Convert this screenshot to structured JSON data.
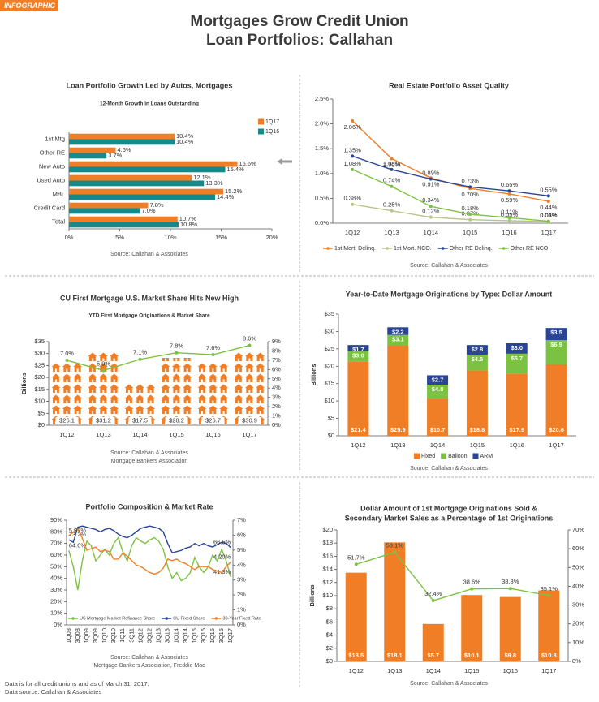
{
  "header": {
    "tag": "INFOGRAPHIC",
    "title": [
      "Mortgages Grow Credit Union",
      "Loan Portfolios: Callahan"
    ]
  },
  "chart_data": [
    {
      "type": "bar",
      "horizontal": true,
      "title": "Loan Portfolio Growth Led by Autos, Mortgages",
      "subtitle": "12-Month Growth in Loans Outstanding",
      "categories": [
        "1st Mtg",
        "Other RE",
        "New Auto",
        "Used Auto",
        "MBL",
        "Credit Card",
        "Total"
      ],
      "series": [
        {
          "name": "1Q17",
          "color": "#f07e26",
          "values": [
            10.4,
            4.6,
            16.6,
            12.1,
            15.2,
            7.8,
            10.7
          ],
          "value_labels": [
            "10.4%",
            "4.6%",
            "16.6%",
            "12.1%",
            "15.2%",
            "7.8%",
            "10.7%"
          ]
        },
        {
          "name": "1Q16",
          "color": "#168a8a",
          "values": [
            10.4,
            3.7,
            15.4,
            13.3,
            14.4,
            7.0,
            10.8
          ],
          "value_labels": [
            "10.4%",
            "3.7%",
            "15.4%",
            "13.3%",
            "14.4%",
            "7.0%",
            "10.8%"
          ]
        }
      ],
      "xlim": [
        0,
        20
      ],
      "xticks": [
        {
          "value": 0,
          "label": "0%"
        },
        {
          "value": 5,
          "label": "5%"
        },
        {
          "value": 10,
          "label": "10%"
        },
        {
          "value": 15,
          "label": "15%"
        },
        {
          "value": 20,
          "label": "20%"
        }
      ],
      "source": [
        "Source: Callahan & Associates"
      ]
    },
    {
      "type": "line",
      "title": "Real Estate Portfolio Asset Quality",
      "categories": [
        "1Q12",
        "1Q13",
        "1Q14",
        "1Q15",
        "1Q16",
        "1Q17"
      ],
      "series": [
        {
          "name": "1st Mort. Delinq.",
          "color": "#f07e26",
          "values": [
            2.06,
            1.3,
            0.91,
            0.7,
            0.59,
            0.44
          ],
          "value_labels": [
            "2.06%",
            "1.30%",
            "0.91%",
            "0.70%",
            "0.59%",
            "0.44%"
          ]
        },
        {
          "name": "1st Mort. NCO.",
          "color": "#b7c585",
          "values": [
            0.38,
            0.25,
            0.12,
            0.07,
            0.05,
            0.03
          ],
          "value_labels": [
            "0.38%",
            "0.25%",
            "0.12%",
            "0.07%",
            "0.05%",
            "0.03%"
          ]
        },
        {
          "name": "Other RE Delinq.",
          "color": "#2b4596",
          "values": [
            1.35,
            1.08,
            0.89,
            0.73,
            0.65,
            0.55
          ],
          "value_labels": [
            "1.35%",
            "1.08%",
            "0.89%",
            "0.73%",
            "0.65%",
            "0.55%"
          ]
        },
        {
          "name": "Other RE NCO",
          "color": "#7cc242",
          "values": [
            1.08,
            0.74,
            0.34,
            0.18,
            0.11,
            0.04
          ],
          "value_labels": [
            "1.08%",
            "0.74%",
            "0.34%",
            "0.18%",
            "0.11%",
            "0.04%"
          ]
        }
      ],
      "ylim": [
        0,
        2.5
      ],
      "yticks": [
        {
          "value": 0,
          "label": "0.0%"
        },
        {
          "value": 0.5,
          "label": "0.5%"
        },
        {
          "value": 1,
          "label": "1.0%"
        },
        {
          "value": 1.5,
          "label": "1.5%"
        },
        {
          "value": 2,
          "label": "2.0%"
        },
        {
          "value": 2.5,
          "label": "2.5%"
        }
      ],
      "source": [
        "Source: Callahan & Associates"
      ]
    },
    {
      "type": "pictograph",
      "title": "CU First Mortgage U.S. Market Share Hits New High",
      "subtitle": "YTD First Mortgage Originations & Market Share",
      "ylabel": "Billions",
      "categories": [
        "1Q12",
        "1Q13",
        "1Q14",
        "1Q15",
        "1Q16",
        "1Q17"
      ],
      "series": [
        {
          "color": "#f07e26",
          "values": [
            26.1,
            31.2,
            17.5,
            28.2,
            26.7,
            30.9
          ],
          "value_labels": [
            "$26.1",
            "$31.2",
            "$17.5",
            "$28.2",
            "$26.7",
            "$30.9"
          ]
        },
        {
          "color": "#7cc242",
          "axis": "y2",
          "values": [
            7.0,
            5.9,
            7.1,
            7.8,
            7.6,
            8.6
          ],
          "value_labels": [
            "7.0%",
            "5.9%",
            "7.1%",
            "7.8%",
            "7.6%",
            "8.6%"
          ]
        }
      ],
      "ylim": [
        0,
        35
      ],
      "yticks": [
        {
          "value": 0,
          "label": "$0"
        },
        {
          "value": 5,
          "label": "$5"
        },
        {
          "value": 10,
          "label": "$10"
        },
        {
          "value": 15,
          "label": "$15"
        },
        {
          "value": 20,
          "label": "$20"
        },
        {
          "value": 25,
          "label": "$25"
        },
        {
          "value": 30,
          "label": "$30"
        },
        {
          "value": 35,
          "label": "$35"
        }
      ],
      "y2lim": [
        0,
        9
      ],
      "y2ticks": [
        {
          "value": 0,
          "label": "0%"
        },
        {
          "value": 1,
          "label": "1%"
        },
        {
          "value": 2,
          "label": "2%"
        },
        {
          "value": 3,
          "label": "3%"
        },
        {
          "value": 4,
          "label": "4%"
        },
        {
          "value": 5,
          "label": "5%"
        },
        {
          "value": 6,
          "label": "6%"
        },
        {
          "value": 7,
          "label": "7%"
        },
        {
          "value": 8,
          "label": "8%"
        },
        {
          "value": 9,
          "label": "9%"
        }
      ],
      "source": [
        "Source: Callahan & Associates",
        "Mortgage Bankers Association"
      ]
    },
    {
      "type": "stacked",
      "title": "Year-to-Date Mortgage Originations by Type: Dollar Amount",
      "ylabel": "Billions",
      "categories": [
        "1Q12",
        "1Q13",
        "1Q14",
        "1Q15",
        "1Q16",
        "1Q17"
      ],
      "series": [
        {
          "name": "Fixed",
          "color": "#f07e26",
          "values": [
            21.4,
            25.9,
            10.7,
            18.8,
            17.9,
            20.6
          ],
          "value_labels": [
            "$21.4",
            "$25.9",
            "$10.7",
            "$18.8",
            "$17.9",
            "$20.6"
          ]
        },
        {
          "name": "Balloon",
          "color": "#7cc242",
          "values": [
            3.0,
            3.1,
            4.0,
            4.5,
            5.7,
            6.9
          ],
          "value_labels": [
            "$3.0",
            "$3.1",
            "$4.0",
            "$4.5",
            "$5.7",
            "$6.9"
          ]
        },
        {
          "name": "ARM",
          "color": "#2b4596",
          "values": [
            1.7,
            2.2,
            2.7,
            2.8,
            3.0,
            3.5
          ],
          "value_labels": [
            "$1.7",
            "$2.2",
            "$2.7",
            "$2.8",
            "$3.0",
            "$3.5"
          ]
        }
      ],
      "ylim": [
        0,
        35
      ],
      "yticks": [
        {
          "value": 0,
          "label": "$0"
        },
        {
          "value": 5,
          "label": "$5"
        },
        {
          "value": 10,
          "label": "$10"
        },
        {
          "value": 15,
          "label": "$15"
        },
        {
          "value": 20,
          "label": "$20"
        },
        {
          "value": 25,
          "label": "$25"
        },
        {
          "value": 30,
          "label": "$30"
        },
        {
          "value": 35,
          "label": "$35"
        }
      ],
      "source": [
        "Source: Callahan & Associates"
      ]
    },
    {
      "type": "line",
      "title": "Portfolio Composition & Market Rate",
      "categories": [
        "1Q08",
        null,
        "3Q08",
        null,
        "1Q09",
        null,
        "3Q09",
        null,
        "1Q10",
        null,
        "3Q10",
        null,
        "1Q11",
        null,
        "3Q11",
        null,
        "1Q12",
        null,
        "3Q12",
        null,
        "1Q13",
        null,
        "3Q13",
        null,
        "1Q14",
        null,
        "3Q14",
        null,
        "1Q15",
        null,
        "3Q15",
        null,
        "1Q16",
        null,
        "3Q16",
        null,
        "1Q17"
      ],
      "series": [
        {
          "name": "US Mortgage Market Refinance Share",
          "color": "#7cc242",
          "values": [
            64.0,
            50,
            30,
            55,
            72,
            68,
            55,
            60,
            65,
            60,
            70,
            75,
            63,
            55,
            68,
            75,
            72,
            70,
            73,
            75,
            72,
            65,
            50,
            40,
            45,
            38,
            40,
            45,
            58,
            50,
            45,
            50,
            60,
            55,
            65,
            55,
            41.3
          ],
          "value_labels": [
            "64.0%",
            null,
            null,
            null,
            null,
            null,
            null,
            null,
            null,
            null,
            null,
            null,
            null,
            null,
            null,
            null,
            null,
            null,
            null,
            null,
            null,
            null,
            null,
            null,
            null,
            null,
            null,
            null,
            null,
            null,
            null,
            null,
            null,
            null,
            null,
            null,
            "41.3%"
          ]
        },
        {
          "name": "CU Fixed Share",
          "color": "#2b4596",
          "values": [
            73.2,
            71,
            84,
            85,
            84,
            83,
            82,
            80,
            82,
            83,
            81,
            78,
            76,
            75,
            77,
            80,
            83,
            84,
            85,
            84,
            83,
            80,
            70,
            62,
            63,
            64,
            66,
            67,
            70,
            68,
            70,
            68,
            67,
            69,
            71,
            70,
            66.5
          ],
          "value_labels": [
            "73.2%",
            null,
            null,
            null,
            null,
            null,
            null,
            null,
            null,
            null,
            null,
            null,
            null,
            null,
            null,
            null,
            null,
            null,
            null,
            null,
            null,
            null,
            null,
            null,
            null,
            null,
            null,
            null,
            null,
            null,
            null,
            null,
            null,
            null,
            null,
            null,
            "66.5%"
          ]
        },
        {
          "name": "30-Year Fixed Rate",
          "color": "#f07e26",
          "axis": "y2",
          "values": [
            5.97,
            6.2,
            6.4,
            5.8,
            5.0,
            5.1,
            5.2,
            4.9,
            5.0,
            4.9,
            4.4,
            4.4,
            4.8,
            4.6,
            4.3,
            4.0,
            3.9,
            3.7,
            3.5,
            3.4,
            3.5,
            3.8,
            4.4,
            4.3,
            4.4,
            4.2,
            4.1,
            3.9,
            3.7,
            3.9,
            3.9,
            3.9,
            3.7,
            3.6,
            3.5,
            3.9,
            4.2
          ],
          "value_labels": [
            "5.97%",
            null,
            null,
            null,
            null,
            null,
            null,
            null,
            null,
            null,
            null,
            null,
            null,
            null,
            null,
            null,
            null,
            null,
            null,
            null,
            null,
            null,
            null,
            null,
            null,
            null,
            null,
            null,
            null,
            null,
            null,
            null,
            null,
            null,
            null,
            null,
            "4.20%"
          ]
        }
      ],
      "ylim": [
        0,
        90
      ],
      "yticks": [
        {
          "value": 0,
          "label": "0%"
        },
        {
          "value": 10,
          "label": "10%"
        },
        {
          "value": 20,
          "label": "20%"
        },
        {
          "value": 30,
          "label": "30%"
        },
        {
          "value": 40,
          "label": "40%"
        },
        {
          "value": 50,
          "label": "50%"
        },
        {
          "value": 60,
          "label": "60%"
        },
        {
          "value": 70,
          "label": "70%"
        },
        {
          "value": 80,
          "label": "80%"
        },
        {
          "value": 90,
          "label": "90%"
        }
      ],
      "y2lim": [
        0,
        7
      ],
      "y2ticks": [
        {
          "value": 0,
          "label": "0%"
        },
        {
          "value": 1,
          "label": "1%"
        },
        {
          "value": 2,
          "label": "2%"
        },
        {
          "value": 3,
          "label": "3%"
        },
        {
          "value": 4,
          "label": "4%"
        },
        {
          "value": 5,
          "label": "5%"
        },
        {
          "value": 6,
          "label": "6%"
        },
        {
          "value": 7,
          "label": "7%"
        }
      ],
      "source": [
        "Source: Callahan & Associates",
        "Mortgage Bankers Association, Freddie Mac"
      ]
    },
    {
      "type": "combo",
      "title": [
        "Dollar Amount of 1st Mortgage Originations Sold &",
        "Secondary Market Sales as a Percentage of 1st Originations"
      ],
      "ylabel": "Billions",
      "categories": [
        "1Q12",
        "1Q13",
        "1Q14",
        "1Q15",
        "1Q16",
        "1Q17"
      ],
      "series": [
        {
          "color": "#f07e26",
          "values": [
            13.5,
            18.1,
            5.7,
            10.1,
            9.8,
            10.8
          ],
          "value_labels": [
            "$13.5",
            "$18.1",
            "$5.7",
            "$10.1",
            "$9.8",
            "$10.8"
          ]
        },
        {
          "color": "#7cc242",
          "axis": "y2",
          "values": [
            51.7,
            58.1,
            32.4,
            38.6,
            38.8,
            35.1
          ],
          "value_labels": [
            "51.7%",
            "58.1%",
            "32.4%",
            "38.6%",
            "38.8%",
            "35.1%"
          ]
        }
      ],
      "ylim": [
        0,
        20
      ],
      "yticks": [
        {
          "value": 0,
          "label": "$0"
        },
        {
          "value": 2,
          "label": "$2"
        },
        {
          "value": 4,
          "label": "$4"
        },
        {
          "value": 6,
          "label": "$6"
        },
        {
          "value": 8,
          "label": "$8"
        },
        {
          "value": 10,
          "label": "$10"
        },
        {
          "value": 12,
          "label": "$12"
        },
        {
          "value": 14,
          "label": "$14"
        },
        {
          "value": 16,
          "label": "$16"
        },
        {
          "value": 18,
          "label": "$18"
        },
        {
          "value": 20,
          "label": "$20"
        }
      ],
      "y2lim": [
        0,
        70
      ],
      "y2ticks": [
        {
          "value": 0,
          "label": "0%"
        },
        {
          "value": 10,
          "label": "10%"
        },
        {
          "value": 20,
          "label": "20%"
        },
        {
          "value": 30,
          "label": "30%"
        },
        {
          "value": 40,
          "label": "40%"
        },
        {
          "value": 50,
          "label": "50%"
        },
        {
          "value": 60,
          "label": "60%"
        },
        {
          "value": 70,
          "label": "70%"
        }
      ],
      "source": [
        "Source: Callahan & Associates"
      ]
    }
  ],
  "footer": [
    "Data is for all credit unions and as of March 31, 2017.",
    "Data source: Callahan & Associates"
  ]
}
